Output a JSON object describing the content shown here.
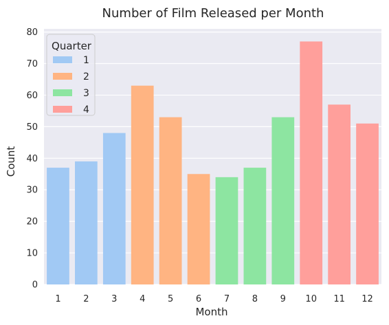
{
  "chart_data": {
    "type": "bar",
    "title": "Number of Film Released per Month",
    "xlabel": "Month",
    "ylabel": "Count",
    "categories": [
      "1",
      "2",
      "3",
      "4",
      "5",
      "6",
      "7",
      "8",
      "9",
      "10",
      "11",
      "12"
    ],
    "values": [
      37,
      39,
      48,
      63,
      53,
      35,
      34,
      37,
      53,
      77,
      57,
      51
    ],
    "hue": [
      1,
      1,
      1,
      2,
      2,
      2,
      3,
      3,
      3,
      4,
      4,
      4
    ],
    "ylim": [
      0,
      81
    ],
    "yticks": [
      0,
      10,
      20,
      30,
      40,
      50,
      60,
      70,
      80
    ],
    "grid": true,
    "legend": {
      "title": "Quarter",
      "placement": "top-left",
      "entries": [
        {
          "label": "1",
          "color": "#a1c9f4"
        },
        {
          "label": "2",
          "color": "#ffb482"
        },
        {
          "label": "3",
          "color": "#8de5a1"
        },
        {
          "label": "4",
          "color": "#ff9f9b"
        }
      ]
    },
    "colors": {
      "background": "#eaeaf2",
      "grid": "#ffffff",
      "quarter_colors": {
        "1": "#a1c9f4",
        "2": "#ffb482",
        "3": "#8de5a1",
        "4": "#ff9f9b"
      }
    }
  }
}
